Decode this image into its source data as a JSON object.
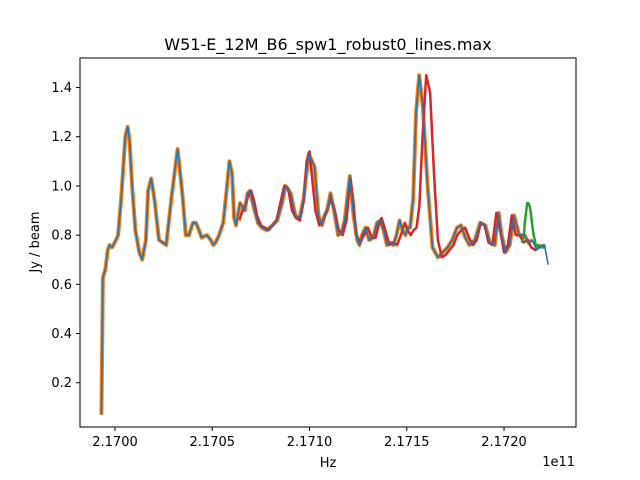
{
  "chart_data": {
    "type": "line",
    "title": "W51-E_12M_B6_spw1_robust0_lines.max",
    "xlabel": "Hz",
    "ylabel": "Jy / beam",
    "offset_text": "1e11",
    "xlim": [
      216982000000.0,
      217237000000.0
    ],
    "ylim": [
      0.02,
      1.52
    ],
    "xticks": [
      {
        "value": 217000000000.0,
        "label": "2.1700"
      },
      {
        "value": 217050000000.0,
        "label": "2.1705"
      },
      {
        "value": 217100000000.0,
        "label": "2.1710"
      },
      {
        "value": 217150000000.0,
        "label": "2.1715"
      },
      {
        "value": 217200000000.0,
        "label": "2.1720"
      }
    ],
    "yticks": [
      {
        "value": 0.2,
        "label": "0.2"
      },
      {
        "value": 0.4,
        "label": "0.4"
      },
      {
        "value": 0.6,
        "label": "0.6"
      },
      {
        "value": 0.8,
        "label": "0.8"
      },
      {
        "value": 1.0,
        "label": "1.0"
      },
      {
        "value": 1.2,
        "label": "1.2"
      },
      {
        "value": 1.4,
        "label": "1.4"
      }
    ],
    "grid": false,
    "series": [
      {
        "color": "#ff7f0e",
        "width": 4,
        "x": [
          216993000000,
          216993400000,
          216993700000,
          216994200000,
          216995000000,
          216996300000,
          216997200000,
          216998500000,
          217000500000,
          217001600000,
          217003200000,
          217005300000,
          217006500000,
          217007500000,
          217008800000,
          217010500000,
          217012500000,
          217014000000,
          217014900000,
          217015900000,
          217017000000,
          217018600000,
          217020200000,
          217022600000,
          217026300000,
          217029000000,
          217032200000,
          217034600000,
          217036400000,
          217038000000,
          217040100000,
          217041600000,
          217043200000,
          217044500000,
          217047200000,
          217049200000,
          217050600000,
          217051700000,
          217053500000,
          217055600000,
          217057200000,
          217058800000,
          217060200000,
          217061200000,
          217062200000,
          217064300000,
          217066700000,
          217068100000,
          217069300000,
          217071100000,
          217073400000,
          217075500000,
          217077900000,
          217080900000,
          217083400000,
          217085900000,
          217087700000,
          217090300000,
          217092700000,
          217094900000,
          217097000000,
          217099600000,
          217102500000,
          217104600000,
          217106400000,
          217107700000,
          217109000000,
          217110800000,
          217112600000,
          217114700000,
          217116400000,
          217118100000,
          217120700000,
          217122600000,
          217124500000,
          217125700000,
          217127000000,
          217128800000,
          217130700000,
          217132800000,
          217134700000,
          217136300000,
          217138100000,
          217139800000,
          217141500000,
          217143100000,
          217144700000,
          217146300000,
          217147800000,
          217149300000,
          217150500000,
          217151700000,
          217153300000,
          217154800000,
          217156400000,
          217158300000,
          217160700000,
          217163200000,
          217166000000,
          217168500000,
          217171000000,
          217173400000,
          217175800000,
          217177800000,
          217180100000,
          217182200000,
          217185000000,
          217187700000,
          217190400000,
          217192700000,
          217195200000,
          217197200000,
          217198800000,
          217200800000,
          217202900000,
          217205100000,
          217207800000,
          217210500000,
          217212600000,
          217214500000
        ],
        "y": [
          0.07,
          0.35,
          0.62,
          0.64,
          0.66,
          0.74,
          0.76,
          0.75,
          0.78,
          0.8,
          0.95,
          1.2,
          1.24,
          1.18,
          1.0,
          0.82,
          0.73,
          0.7,
          0.74,
          0.78,
          0.98,
          1.03,
          0.95,
          0.78,
          0.76,
          0.95,
          1.15,
          0.97,
          0.8,
          0.8,
          0.85,
          0.85,
          0.82,
          0.79,
          0.8,
          0.78,
          0.76,
          0.77,
          0.8,
          0.85,
          0.97,
          1.1,
          1.05,
          0.87,
          0.84,
          0.93,
          0.9,
          0.97,
          0.98,
          0.92,
          0.85,
          0.83,
          0.82,
          0.84,
          0.86,
          0.93,
          1.0,
          0.97,
          0.88,
          0.87,
          0.95,
          1.13,
          1.08,
          0.88,
          0.84,
          0.88,
          0.9,
          0.97,
          0.9,
          0.8,
          0.81,
          0.86,
          1.04,
          0.88,
          0.78,
          0.76,
          0.8,
          0.83,
          0.78,
          0.79,
          0.85,
          0.86,
          0.82,
          0.76,
          0.77,
          0.76,
          0.8,
          0.86,
          0.82,
          0.8,
          0.83,
          0.83,
          0.95,
          1.3,
          1.45,
          1.32,
          1.0,
          0.75,
          0.71,
          0.73,
          0.75,
          0.78,
          0.83,
          0.84,
          0.79,
          0.76,
          0.78,
          0.85,
          0.84,
          0.77,
          0.76,
          0.89,
          0.8,
          0.73,
          0.76,
          0.88,
          0.8,
          0.8,
          0.77,
          0.78
        ]
      },
      {
        "color": "#d62728",
        "width": 2.5,
        "x": [
          217064000000,
          217065500000,
          217067000000,
          217068500000,
          217070000000,
          217071500000,
          217073000000,
          217075000000,
          217077000000,
          217079000000,
          217081000000,
          217083000000,
          217085000000,
          217087000000,
          217089000000,
          217091000000,
          217093000000,
          217095000000,
          217097000000,
          217098500000,
          217100000000,
          217101500000,
          217103000000,
          217105000000,
          217107000000,
          217109000000,
          217111000000,
          217113000000,
          217115000000,
          217117000000,
          217119000000,
          217121000000,
          217122500000,
          217124000000,
          217126000000,
          217128000000,
          217130000000,
          217132000000,
          217134000000,
          217135500000,
          217137000000,
          217139000000,
          217141000000,
          217143000000,
          217145000000,
          217147000000,
          217149000000,
          217150500000,
          217152000000,
          217153500000,
          217155000000,
          217156500000,
          217158000000,
          217160000000,
          217162000000,
          217164000000,
          217166000000,
          217168000000,
          217170000000,
          217172000000,
          217174000000,
          217176000000,
          217178000000,
          217180000000,
          217182000000,
          217184000000,
          217186000000,
          217188000000,
          217190000000,
          217192000000,
          217194000000,
          217196000000,
          217198000000,
          217200000000,
          217202000000,
          217204000000,
          217206000000,
          217208000000,
          217210000000,
          217212000000,
          217214000000,
          217216000000,
          217218000000,
          217220000000
        ],
        "y": [
          0.86,
          0.9,
          0.92,
          0.96,
          0.98,
          0.94,
          0.88,
          0.84,
          0.83,
          0.82,
          0.84,
          0.86,
          0.93,
          1.0,
          0.99,
          0.9,
          0.87,
          0.86,
          0.94,
          1.1,
          1.14,
          1.02,
          0.9,
          0.84,
          0.86,
          0.9,
          0.95,
          0.9,
          0.82,
          0.8,
          0.86,
          1.03,
          0.94,
          0.8,
          0.77,
          0.8,
          0.83,
          0.79,
          0.79,
          0.84,
          0.87,
          0.82,
          0.76,
          0.77,
          0.76,
          0.8,
          0.85,
          0.82,
          0.8,
          0.82,
          0.83,
          0.92,
          1.18,
          1.45,
          1.38,
          1.05,
          0.78,
          0.71,
          0.72,
          0.74,
          0.76,
          0.8,
          0.82,
          0.83,
          0.79,
          0.76,
          0.78,
          0.85,
          0.84,
          0.77,
          0.76,
          0.89,
          0.82,
          0.73,
          0.76,
          0.88,
          0.8,
          0.8,
          0.77,
          0.78,
          0.75,
          0.74,
          0.75,
          0.76
        ]
      },
      {
        "color": "#2ca02c",
        "width": 2.5,
        "x": [
          217209000000,
          217209600000,
          217210200000,
          217210700000,
          217211300000,
          217211900000,
          217212400000,
          217213100000,
          217213600000,
          217214200000,
          217214700000,
          217215200000,
          217215800000,
          217216300000,
          217216800000,
          217217400000,
          217217900000,
          217218500000,
          217219000000,
          217219600000,
          217220100000,
          217220600000,
          217221000000
        ],
        "y": [
          0.77,
          0.78,
          0.8,
          0.85,
          0.89,
          0.93,
          0.93,
          0.92,
          0.9,
          0.86,
          0.83,
          0.8,
          0.78,
          0.76,
          0.75,
          0.76,
          0.76,
          0.75,
          0.75,
          0.75,
          0.75,
          0.76,
          0.75
        ]
      },
      {
        "color": "#1f77b4",
        "width": 1.6,
        "x": [
          216993000000,
          216993400000,
          216993700000,
          216994200000,
          216995000000,
          216996300000,
          216997200000,
          216998500000,
          217000500000,
          217001600000,
          217003200000,
          217005300000,
          217006500000,
          217007500000,
          217008800000,
          217010500000,
          217012500000,
          217014000000,
          217014900000,
          217015900000,
          217017000000,
          217018600000,
          217020200000,
          217022600000,
          217026300000,
          217029000000,
          217032200000,
          217034600000,
          217036400000,
          217038000000,
          217040100000,
          217041600000,
          217043200000,
          217044500000,
          217047200000,
          217049200000,
          217050600000,
          217051700000,
          217053500000,
          217055600000,
          217057200000,
          217058800000,
          217060200000,
          217061200000,
          217062200000,
          217064300000,
          217066700000,
          217068100000,
          217069300000,
          217071100000,
          217073400000,
          217075500000,
          217077900000,
          217080900000,
          217083400000,
          217085900000,
          217087700000,
          217090300000,
          217092700000,
          217094900000,
          217097000000,
          217099600000,
          217102500000,
          217104600000,
          217106400000,
          217107700000,
          217109000000,
          217110800000,
          217112600000,
          217114700000,
          217116400000,
          217118100000,
          217120700000,
          217122600000,
          217124500000,
          217125700000,
          217127000000,
          217128800000,
          217130700000,
          217132800000,
          217134700000,
          217136300000,
          217138100000,
          217139800000,
          217141500000,
          217143100000,
          217144700000,
          217146300000,
          217147800000,
          217149300000,
          217150500000,
          217151700000,
          217153300000,
          217154800000,
          217156400000,
          217158300000,
          217160700000,
          217163200000,
          217166000000,
          217168500000,
          217171000000,
          217173400000,
          217175800000,
          217177800000,
          217180100000,
          217182200000,
          217185000000,
          217187700000,
          217190400000,
          217192700000,
          217195200000,
          217197200000,
          217198800000,
          217200800000,
          217202900000,
          217205100000,
          217207800000,
          217210500000,
          217212600000,
          217214500000,
          217216800000,
          217219400000,
          217221000000,
          217222700000
        ],
        "y": [
          0.07,
          0.35,
          0.62,
          0.64,
          0.66,
          0.74,
          0.76,
          0.75,
          0.78,
          0.8,
          0.95,
          1.2,
          1.24,
          1.18,
          1.0,
          0.82,
          0.73,
          0.7,
          0.74,
          0.78,
          0.98,
          1.03,
          0.95,
          0.78,
          0.76,
          0.95,
          1.15,
          0.97,
          0.8,
          0.8,
          0.85,
          0.85,
          0.82,
          0.79,
          0.8,
          0.78,
          0.76,
          0.77,
          0.8,
          0.85,
          0.97,
          1.1,
          1.05,
          0.87,
          0.84,
          0.93,
          0.9,
          0.97,
          0.98,
          0.92,
          0.85,
          0.83,
          0.82,
          0.84,
          0.86,
          0.93,
          1.0,
          0.97,
          0.88,
          0.87,
          0.95,
          1.13,
          1.08,
          0.88,
          0.84,
          0.88,
          0.9,
          0.97,
          0.9,
          0.8,
          0.81,
          0.86,
          1.04,
          0.88,
          0.78,
          0.76,
          0.8,
          0.83,
          0.78,
          0.79,
          0.85,
          0.86,
          0.82,
          0.76,
          0.77,
          0.76,
          0.8,
          0.86,
          0.82,
          0.8,
          0.83,
          0.83,
          0.95,
          1.3,
          1.45,
          1.32,
          1.0,
          0.75,
          0.71,
          0.73,
          0.75,
          0.78,
          0.83,
          0.84,
          0.79,
          0.76,
          0.78,
          0.85,
          0.84,
          0.77,
          0.76,
          0.89,
          0.8,
          0.73,
          0.76,
          0.88,
          0.8,
          0.8,
          0.77,
          0.78,
          0.74,
          0.76,
          0.75,
          0.68
        ]
      }
    ]
  }
}
